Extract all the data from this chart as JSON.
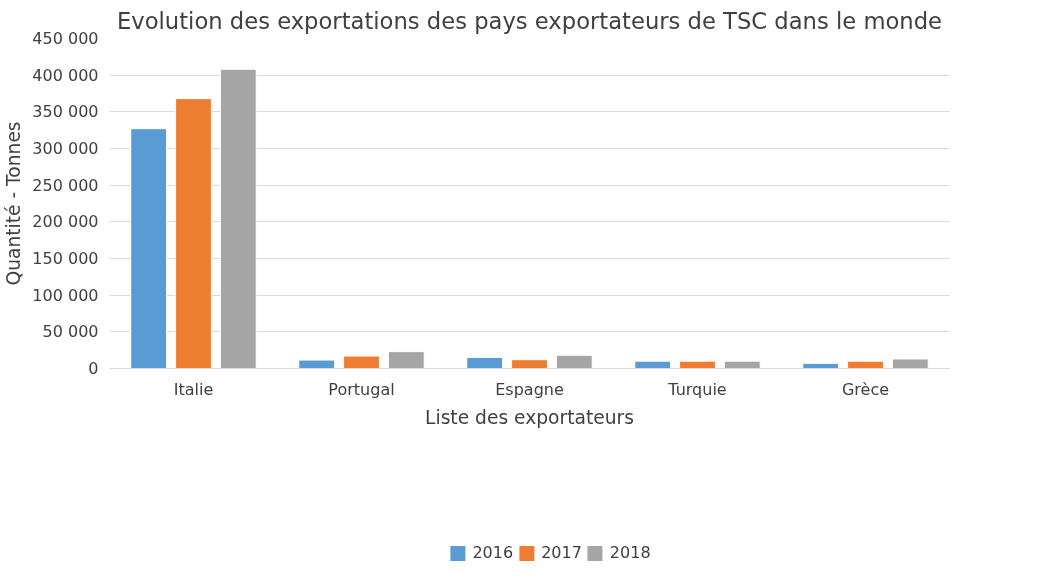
{
  "chart_data": {
    "type": "bar",
    "title": "Evolution des exportations des pays exportateurs de TSC dans le monde",
    "xlabel": "Liste des exportateurs",
    "ylabel": "Quantité - Tonnes",
    "categories": [
      "Italie",
      "Portugal",
      "Espagne",
      "Turquie",
      "Grèce"
    ],
    "series": [
      {
        "name": "2016",
        "color": "#5b9bd5",
        "values": [
          327000,
          11500,
          15000,
          10000,
          7000
        ]
      },
      {
        "name": "2017",
        "color": "#ed7d31",
        "values": [
          368000,
          17000,
          12000,
          10000,
          10000
        ]
      },
      {
        "name": "2018",
        "color": "#a5a5a5",
        "values": [
          408000,
          23000,
          18000,
          10000,
          13000
        ]
      }
    ],
    "ylim": [
      0,
      450000
    ],
    "yticks": [
      {
        "value": 0,
        "label": "0"
      },
      {
        "value": 50000,
        "label": "50 000"
      },
      {
        "value": 100000,
        "label": "100 000"
      },
      {
        "value": 150000,
        "label": "150 000"
      },
      {
        "value": 200000,
        "label": "200 000"
      },
      {
        "value": 250000,
        "label": "250 000"
      },
      {
        "value": 300000,
        "label": "300 000"
      },
      {
        "value": 350000,
        "label": "350 000"
      },
      {
        "value": 400000,
        "label": "400 000"
      },
      {
        "value": 450000,
        "label": "450 000"
      }
    ],
    "grid": "y",
    "legend": "bottom"
  }
}
